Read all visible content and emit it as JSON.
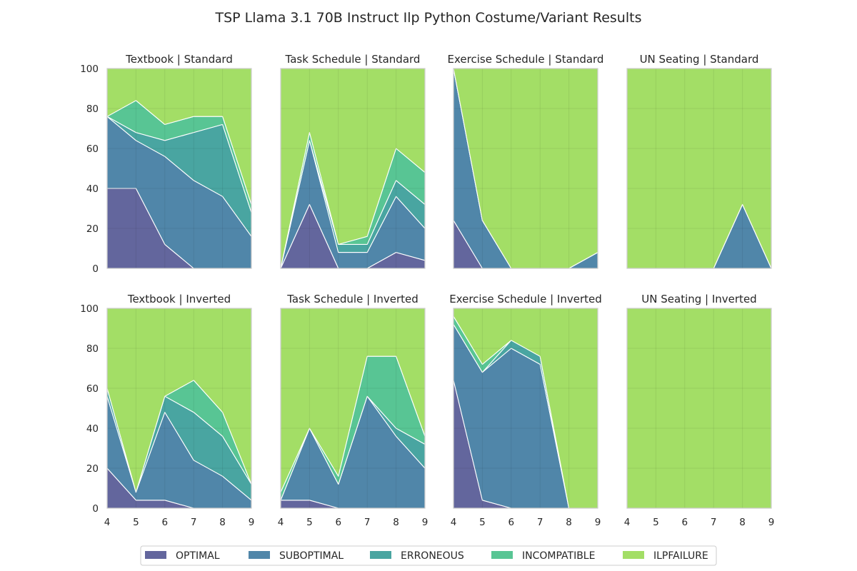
{
  "chart_data": {
    "type": "area",
    "stacked": true,
    "title": "TSP Llama 3.1 70B Instruct Ilp Python Costume/Variant Results",
    "x": [
      4,
      5,
      6,
      7,
      8,
      9
    ],
    "ylim": [
      0,
      100
    ],
    "xlim": [
      4,
      9
    ],
    "yticks": [
      0,
      20,
      40,
      60,
      80,
      100
    ],
    "grid": true,
    "legend_placement": "bottom-center",
    "series_names": [
      "OPTIMAL",
      "SUBOPTIMAL",
      "ERRONEOUS",
      "INCOMPATIBLE",
      "ILPFAILURE"
    ],
    "colors": [
      "#414487",
      "#2a6b96",
      "#21918c",
      "#33b87d",
      "#8fd744"
    ],
    "panels": [
      {
        "title": "Textbook | Standard",
        "series": [
          {
            "name": "OPTIMAL",
            "values": [
              40,
              40,
              12,
              0,
              0,
              0
            ]
          },
          {
            "name": "SUBOPTIMAL",
            "values": [
              36,
              24,
              44,
              44,
              36,
              16
            ]
          },
          {
            "name": "ERRONEOUS",
            "values": [
              0,
              4,
              8,
              24,
              36,
              12
            ]
          },
          {
            "name": "INCOMPATIBLE",
            "values": [
              0,
              16,
              8,
              8,
              4,
              4
            ]
          },
          {
            "name": "ILPFAILURE",
            "values": [
              24,
              16,
              28,
              24,
              24,
              68
            ]
          }
        ]
      },
      {
        "title": "Task Schedule | Standard",
        "series": [
          {
            "name": "OPTIMAL",
            "values": [
              0,
              32,
              0,
              0,
              8,
              4
            ]
          },
          {
            "name": "SUBOPTIMAL",
            "values": [
              0,
              32,
              8,
              8,
              28,
              16
            ]
          },
          {
            "name": "ERRONEOUS",
            "values": [
              0,
              0,
              4,
              4,
              8,
              12
            ]
          },
          {
            "name": "INCOMPATIBLE",
            "values": [
              0,
              4,
              0,
              4,
              16,
              16
            ]
          },
          {
            "name": "ILPFAILURE",
            "values": [
              100,
              32,
              88,
              84,
              40,
              52
            ]
          }
        ]
      },
      {
        "title": "Exercise Schedule | Standard",
        "series": [
          {
            "name": "OPTIMAL",
            "values": [
              24,
              0,
              0,
              0,
              0,
              0
            ]
          },
          {
            "name": "SUBOPTIMAL",
            "values": [
              76,
              24,
              0,
              0,
              0,
              8
            ]
          },
          {
            "name": "ERRONEOUS",
            "values": [
              0,
              0,
              0,
              0,
              0,
              0
            ]
          },
          {
            "name": "INCOMPATIBLE",
            "values": [
              0,
              0,
              0,
              0,
              0,
              0
            ]
          },
          {
            "name": "ILPFAILURE",
            "values": [
              0,
              76,
              100,
              100,
              100,
              92
            ]
          }
        ]
      },
      {
        "title": "UN Seating | Standard",
        "series": [
          {
            "name": "OPTIMAL",
            "values": [
              0,
              0,
              0,
              0,
              0,
              0
            ]
          },
          {
            "name": "SUBOPTIMAL",
            "values": [
              0,
              0,
              0,
              0,
              32,
              0
            ]
          },
          {
            "name": "ERRONEOUS",
            "values": [
              0,
              0,
              0,
              0,
              0,
              0
            ]
          },
          {
            "name": "INCOMPATIBLE",
            "values": [
              0,
              0,
              0,
              0,
              0,
              0
            ]
          },
          {
            "name": "ILPFAILURE",
            "values": [
              100,
              100,
              100,
              100,
              68,
              100
            ]
          }
        ]
      },
      {
        "title": "Textbook | Inverted",
        "series": [
          {
            "name": "OPTIMAL",
            "values": [
              20,
              4,
              4,
              0,
              0,
              0
            ]
          },
          {
            "name": "SUBOPTIMAL",
            "values": [
              36,
              4,
              44,
              24,
              16,
              4
            ]
          },
          {
            "name": "ERRONEOUS",
            "values": [
              4,
              0,
              8,
              24,
              20,
              8
            ]
          },
          {
            "name": "INCOMPATIBLE",
            "values": [
              0,
              0,
              0,
              16,
              12,
              0
            ]
          },
          {
            "name": "ILPFAILURE",
            "values": [
              40,
              92,
              44,
              36,
              52,
              88
            ]
          }
        ]
      },
      {
        "title": "Task Schedule | Inverted",
        "series": [
          {
            "name": "OPTIMAL",
            "values": [
              4,
              4,
              0,
              0,
              0,
              0
            ]
          },
          {
            "name": "SUBOPTIMAL",
            "values": [
              0,
              36,
              12,
              56,
              36,
              20
            ]
          },
          {
            "name": "ERRONEOUS",
            "values": [
              0,
              0,
              0,
              0,
              4,
              12
            ]
          },
          {
            "name": "INCOMPATIBLE",
            "values": [
              4,
              0,
              4,
              20,
              36,
              4
            ]
          },
          {
            "name": "ILPFAILURE",
            "values": [
              92,
              60,
              84,
              24,
              24,
              64
            ]
          }
        ]
      },
      {
        "title": "Exercise Schedule | Inverted",
        "series": [
          {
            "name": "OPTIMAL",
            "values": [
              64,
              4,
              0,
              0,
              0,
              0
            ]
          },
          {
            "name": "SUBOPTIMAL",
            "values": [
              28,
              64,
              80,
              72,
              0,
              0
            ]
          },
          {
            "name": "ERRONEOUS",
            "values": [
              0,
              0,
              4,
              4,
              0,
              0
            ]
          },
          {
            "name": "INCOMPATIBLE",
            "values": [
              4,
              4,
              0,
              0,
              0,
              0
            ]
          },
          {
            "name": "ILPFAILURE",
            "values": [
              4,
              28,
              16,
              24,
              100,
              100
            ]
          }
        ]
      },
      {
        "title": "UN Seating | Inverted",
        "series": [
          {
            "name": "OPTIMAL",
            "values": [
              0,
              0,
              0,
              0,
              0,
              0
            ]
          },
          {
            "name": "SUBOPTIMAL",
            "values": [
              0,
              0,
              0,
              0,
              0,
              0
            ]
          },
          {
            "name": "ERRONEOUS",
            "values": [
              0,
              0,
              0,
              0,
              0,
              0
            ]
          },
          {
            "name": "INCOMPATIBLE",
            "values": [
              0,
              0,
              0,
              0,
              0,
              0
            ]
          },
          {
            "name": "ILPFAILURE",
            "values": [
              100,
              100,
              100,
              100,
              100,
              100
            ]
          }
        ]
      }
    ]
  }
}
